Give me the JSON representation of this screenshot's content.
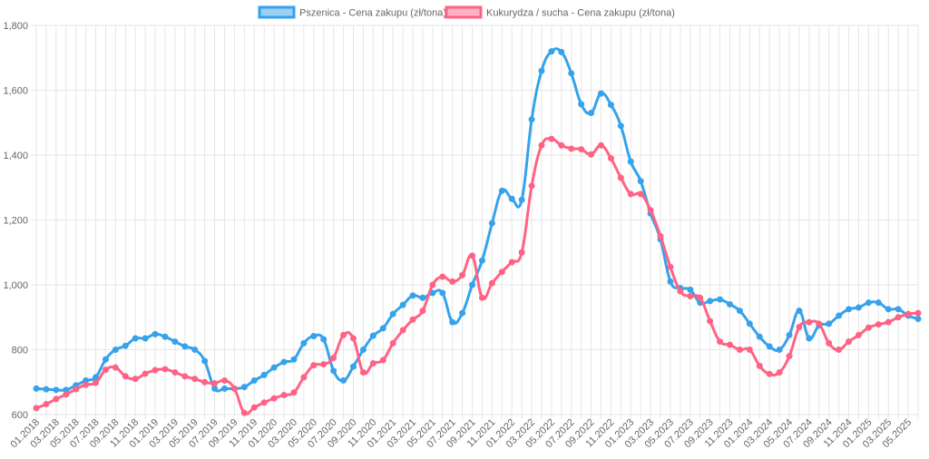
{
  "chart_data": {
    "type": "line",
    "title": "",
    "xlabel": "",
    "ylabel": "",
    "ylim": [
      600,
      1800
    ],
    "yticks": [
      600,
      800,
      1000,
      1200,
      1400,
      1600,
      1800
    ],
    "ytick_labels": [
      "600",
      "800",
      "1,000",
      "1,200",
      "1,400",
      "1,600",
      "1,800"
    ],
    "grid": true,
    "legend_position": "top",
    "categories": [
      "01.2018",
      "02.2018",
      "03.2018",
      "04.2018",
      "05.2018",
      "06.2018",
      "07.2018",
      "08.2018",
      "09.2018",
      "10.2018",
      "11.2018",
      "12.2018",
      "01.2019",
      "02.2019",
      "03.2019",
      "04.2019",
      "05.2019",
      "06.2019",
      "07.2019",
      "08.2019",
      "09.2019",
      "10.2019",
      "11.2019",
      "12.2019",
      "01.2020",
      "02.2020",
      "03.2020",
      "04.2020",
      "05.2020",
      "06.2020",
      "07.2020",
      "08.2020",
      "09.2020",
      "10.2020",
      "11.2020",
      "12.2020",
      "01.2021",
      "02.2021",
      "03.2021",
      "04.2021",
      "05.2021",
      "06.2021",
      "07.2021",
      "08.2021",
      "09.2021",
      "10.2021",
      "11.2021",
      "12.2021",
      "01.2022",
      "02.2022",
      "03.2022",
      "04.2022",
      "05.2022",
      "06.2022",
      "07.2022",
      "08.2022",
      "09.2022",
      "10.2022",
      "11.2022",
      "12.2022",
      "01.2023",
      "02.2023",
      "03.2023",
      "04.2023",
      "05.2023",
      "06.2023",
      "07.2023",
      "08.2023",
      "09.2023",
      "10.2023",
      "11.2023",
      "12.2023",
      "01.2024",
      "02.2024",
      "03.2024",
      "04.2024",
      "05.2024",
      "06.2024",
      "07.2024",
      "08.2024",
      "09.2024",
      "10.2024",
      "11.2024",
      "12.2024",
      "01.2025",
      "02.2025",
      "03.2025",
      "04.2025",
      "05.2025",
      "06.2025"
    ],
    "x_tick_labels": [
      "01.2018",
      "03.2018",
      "05.2018",
      "07.2018",
      "09.2018",
      "11.2018",
      "01.2019",
      "03.2019",
      "05.2019",
      "07.2019",
      "09.2019",
      "11.2019",
      "01.2020",
      "03.2020",
      "05.2020",
      "07.2020",
      "09.2020",
      "11.2020",
      "01.2021",
      "03.2021",
      "05.2021",
      "07.2021",
      "09.2021",
      "11.2021",
      "01.2022",
      "03.2022",
      "05.2022",
      "07.2022",
      "09.2022",
      "11.2022",
      "01.2023",
      "03.2023",
      "05.2023",
      "07.2023",
      "09.2023",
      "11.2023",
      "01.2024",
      "03.2024",
      "05.2024",
      "07.2024",
      "09.2024",
      "11.2024",
      "01.2025",
      "03.2025",
      "05.2025"
    ],
    "series": [
      {
        "name": "Pszenica - Cena zakupu (zł/tona)",
        "color": "#36a2eb",
        "fill": "#9ad0f5",
        "values": [
          680,
          678,
          676,
          676,
          690,
          705,
          715,
          770,
          800,
          812,
          835,
          835,
          848,
          840,
          825,
          810,
          800,
          765,
          680,
          680,
          680,
          685,
          705,
          722,
          745,
          762,
          770,
          820,
          842,
          832,
          735,
          705,
          748,
          800,
          843,
          866,
          910,
          938,
          967,
          960,
          975,
          975,
          885,
          913,
          1000,
          1075,
          1190,
          1290,
          1265,
          1262,
          1510,
          1660,
          1720,
          1718,
          1652,
          1557,
          1530,
          1590,
          1555,
          1490,
          1380,
          1320,
          1220,
          1140,
          1010,
          990,
          985,
          945,
          950,
          955,
          940,
          920,
          880,
          840,
          810,
          800,
          845,
          920,
          835,
          875,
          880,
          905,
          925,
          930,
          945,
          945,
          925,
          925,
          905,
          895
        ]
      },
      {
        "name": "Kukurydza / sucha - Cena zakupu (zł/tona)",
        "color": "#ff6384",
        "fill": "#ffb1c1",
        "values": [
          620,
          632,
          648,
          662,
          678,
          692,
          698,
          738,
          745,
          718,
          710,
          726,
          737,
          740,
          730,
          718,
          710,
          700,
          696,
          705,
          680,
          605,
          622,
          637,
          650,
          660,
          668,
          715,
          752,
          755,
          775,
          845,
          835,
          730,
          758,
          768,
          820,
          860,
          893,
          920,
          1000,
          1025,
          1010,
          1030,
          1090,
          960,
          1005,
          1040,
          1070,
          1100,
          1305,
          1430,
          1450,
          1430,
          1420,
          1418,
          1402,
          1430,
          1390,
          1330,
          1280,
          1280,
          1230,
          1150,
          1055,
          980,
          965,
          960,
          888,
          825,
          815,
          800,
          800,
          750,
          725,
          730,
          780,
          870,
          885,
          880,
          820,
          800,
          825,
          845,
          868,
          878,
          885,
          900,
          910,
          913
        ]
      }
    ]
  }
}
